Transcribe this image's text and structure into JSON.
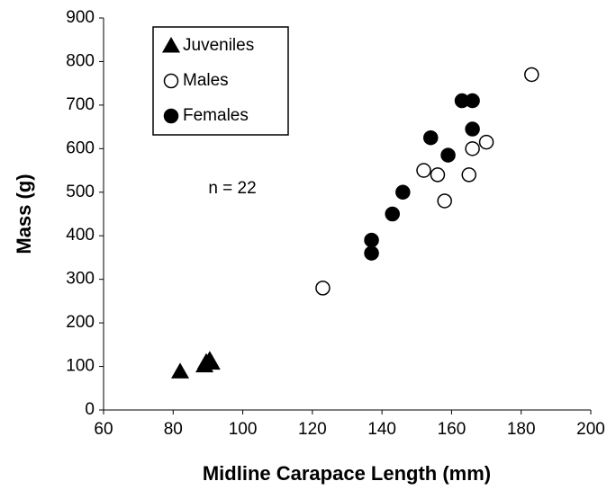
{
  "chart_data": {
    "type": "scatter",
    "xlabel": "Midline Carapace Length (mm)",
    "ylabel": "Mass (g)",
    "annotation": "n = 22",
    "xlim": [
      60,
      200
    ],
    "xticks": [
      60,
      80,
      100,
      120,
      140,
      160,
      180,
      200
    ],
    "ylim": [
      0,
      900
    ],
    "yticks": [
      0,
      100,
      200,
      300,
      400,
      500,
      600,
      700,
      800,
      900
    ],
    "legend": "upper left",
    "series": [
      {
        "name": "Juveniles",
        "color": "#000000",
        "marker": "triangle",
        "x": [
          82,
          89,
          89.5,
          90.5,
          91
        ],
        "values": [
          88,
          102,
          110,
          115,
          108
        ]
      },
      {
        "name": "Males",
        "color": "#000000",
        "marker": "open-circle",
        "x": [
          123,
          152,
          156,
          158,
          165,
          166,
          170,
          183
        ],
        "values": [
          280,
          550,
          540,
          480,
          540,
          600,
          615,
          770
        ]
      },
      {
        "name": "Females",
        "color": "#000000",
        "marker": "circle",
        "x": [
          137,
          137,
          143,
          146,
          154,
          159,
          163,
          166,
          166
        ],
        "values": [
          390,
          360,
          450,
          500,
          625,
          585,
          710,
          710,
          645
        ]
      }
    ]
  }
}
